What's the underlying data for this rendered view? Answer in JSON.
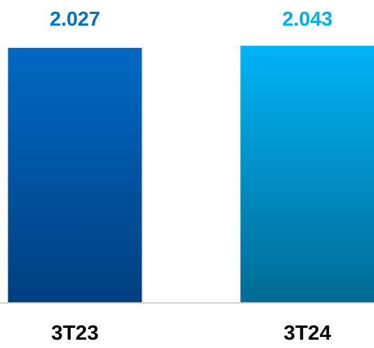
{
  "chart_data": {
    "type": "bar",
    "categories": [
      "3T23",
      "3T24"
    ],
    "values": [
      2027,
      2043
    ],
    "value_labels": [
      "2.027",
      "2.043"
    ],
    "title": "",
    "xlabel": "",
    "ylabel": "",
    "ylim": [
      0,
      2200
    ],
    "grid": false,
    "legend": "none",
    "colors": {
      "bar_1_top": "#0069c4",
      "bar_1_bottom": "#003f7f",
      "bar_2_top": "#00b4f5",
      "bar_2_bottom": "#006b94",
      "label_1": "#006fc9",
      "label_2": "#00aeef",
      "axis": "#d0d0d0"
    }
  }
}
